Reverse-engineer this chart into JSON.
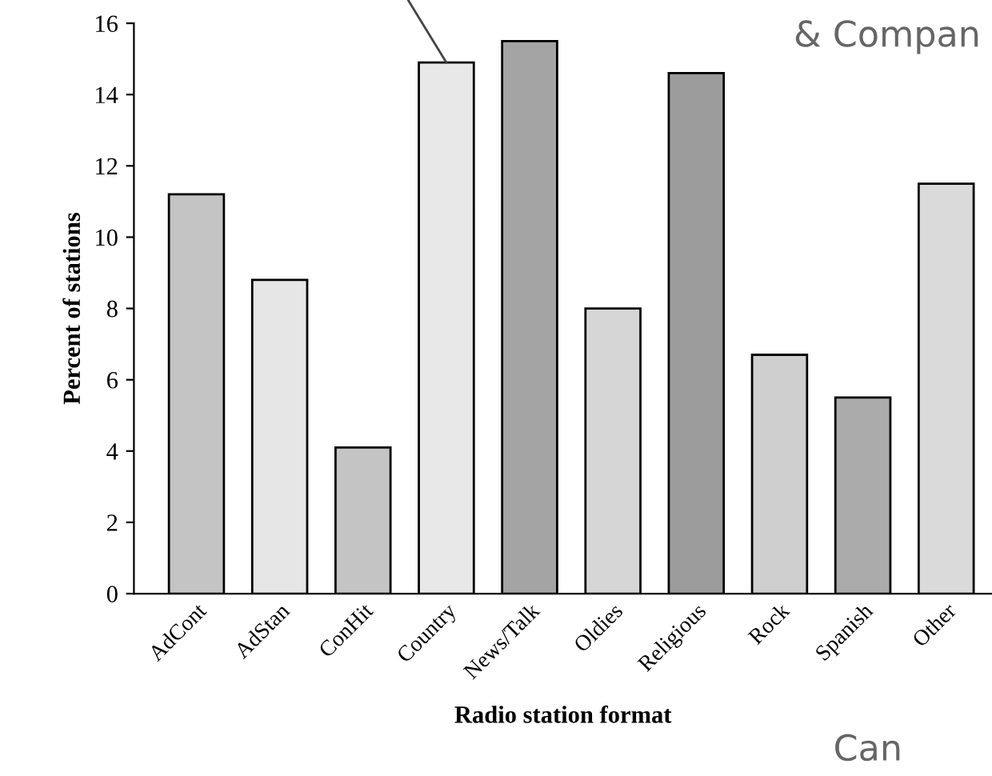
{
  "chart_data": {
    "type": "bar",
    "xlabel": "Radio station format",
    "ylabel": "Percent of stations",
    "categories": [
      "AdCont",
      "AdStan",
      "ConHit",
      "Country",
      "News/Talk",
      "Oldies",
      "Religious",
      "Rock",
      "Spanish",
      "Other"
    ],
    "values": [
      11.2,
      8.8,
      4.1,
      14.9,
      15.5,
      8.0,
      14.6,
      6.7,
      5.5,
      11.5
    ],
    "colors": [
      "#c4c4c4",
      "#e6e6e6",
      "#c4c4c4",
      "#e8e8e8",
      "#a4a4a4",
      "#d6d6d6",
      "#9c9c9c",
      "#cfcfcf",
      "#ababab",
      "#dadada"
    ],
    "ylim": [
      0,
      16
    ],
    "yticks": [
      0,
      2,
      4,
      6,
      8,
      10,
      12,
      14,
      16
    ],
    "grid": false,
    "legend": false,
    "annotations": [
      "& Compan",
      "Can"
    ]
  }
}
